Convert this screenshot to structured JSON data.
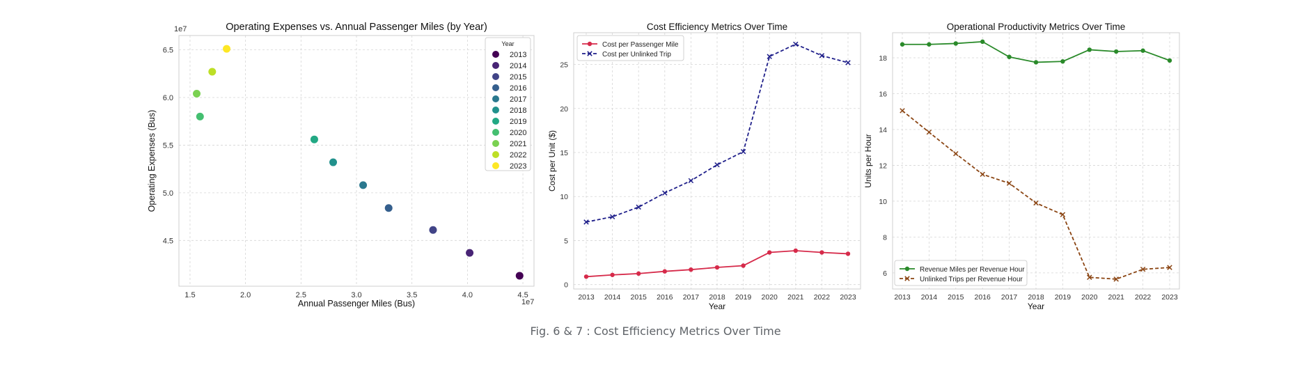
{
  "caption": "Fig. 6 & 7 : Cost Efficiency Metrics Over Time",
  "chart_data": [
    {
      "type": "scatter",
      "title": "Operating Expenses vs. Annual Passenger Miles (by Year)",
      "xlabel": "Annual Passenger Miles (Bus)",
      "ylabel": "Operating Expenses (Bus)",
      "x_offset_label": "1e7",
      "y_offset_label": "1e7",
      "xlim": [
        1.4,
        4.6
      ],
      "ylim": [
        4.02,
        6.65
      ],
      "xticks": [
        1.5,
        2.0,
        2.5,
        3.0,
        3.5,
        4.0,
        4.5
      ],
      "yticks": [
        4.5,
        5.0,
        5.5,
        6.0,
        6.5
      ],
      "grid": true,
      "legend": {
        "title": "Year",
        "placement": "top-right"
      },
      "points": [
        {
          "year": "2013",
          "x": 4.47,
          "y": 4.13,
          "color": "#440154"
        },
        {
          "year": "2014",
          "x": 4.02,
          "y": 4.37,
          "color": "#482475"
        },
        {
          "year": "2015",
          "x": 3.69,
          "y": 4.61,
          "color": "#414487"
        },
        {
          "year": "2016",
          "x": 3.29,
          "y": 4.84,
          "color": "#355f8d"
        },
        {
          "year": "2017",
          "x": 3.06,
          "y": 5.08,
          "color": "#2a788e"
        },
        {
          "year": "2018",
          "x": 2.79,
          "y": 5.32,
          "color": "#21918c"
        },
        {
          "year": "2019",
          "x": 2.62,
          "y": 5.56,
          "color": "#22a884"
        },
        {
          "year": "2020",
          "x": 1.59,
          "y": 5.8,
          "color": "#44bf70"
        },
        {
          "year": "2021",
          "x": 1.56,
          "y": 6.04,
          "color": "#7ad151"
        },
        {
          "year": "2022",
          "x": 1.7,
          "y": 6.27,
          "color": "#bddf26"
        },
        {
          "year": "2023",
          "x": 1.83,
          "y": 6.51,
          "color": "#fde725"
        }
      ]
    },
    {
      "type": "line",
      "title": "Cost Efficiency Metrics Over Time",
      "xlabel": "Year",
      "ylabel": "Cost per Unit ($)",
      "categories": [
        "2013",
        "2014",
        "2015",
        "2016",
        "2017",
        "2018",
        "2019",
        "2020",
        "2021",
        "2022",
        "2023"
      ],
      "ylim": [
        -0.5,
        28.6
      ],
      "yticks": [
        0,
        5,
        10,
        15,
        20,
        25
      ],
      "grid": true,
      "legend": {
        "placement": "top-left"
      },
      "series": [
        {
          "name": "Cost per Passenger Mile",
          "marker": "circle",
          "dash": "solid",
          "color": "#d62a4a",
          "values": [
            0.9,
            1.1,
            1.25,
            1.5,
            1.7,
            1.95,
            2.15,
            3.65,
            3.85,
            3.65,
            3.5
          ]
        },
        {
          "name": "Cost per Unlinked Trip",
          "marker": "x",
          "dash": "dashed",
          "color": "#1f1f8a",
          "values": [
            7.1,
            7.7,
            8.8,
            10.4,
            11.8,
            13.6,
            15.1,
            25.9,
            27.3,
            26.0,
            25.2
          ]
        }
      ]
    },
    {
      "type": "line",
      "title": "Operational Productivity Metrics Over Time",
      "xlabel": "Year",
      "ylabel": "Units per Hour",
      "categories": [
        "2013",
        "2014",
        "2015",
        "2016",
        "2017",
        "2018",
        "2019",
        "2020",
        "2021",
        "2022",
        "2023"
      ],
      "ylim": [
        5.1,
        19.4
      ],
      "yticks": [
        6,
        8,
        10,
        12,
        14,
        16,
        18
      ],
      "grid": true,
      "legend": {
        "placement": "bottom-left"
      },
      "series": [
        {
          "name": "Revenue Miles per Revenue Hour",
          "marker": "circle",
          "dash": "solid",
          "color": "#2a8a2a",
          "values": [
            18.75,
            18.75,
            18.8,
            18.9,
            18.05,
            17.75,
            17.8,
            18.45,
            18.35,
            18.4,
            17.85
          ]
        },
        {
          "name": "Unlinked Trips per Revenue Hour",
          "marker": "x",
          "dash": "dashed",
          "color": "#8b4513",
          "values": [
            15.05,
            13.85,
            12.65,
            11.5,
            11.0,
            9.9,
            9.25,
            5.75,
            5.65,
            6.2,
            6.3
          ]
        }
      ]
    }
  ]
}
